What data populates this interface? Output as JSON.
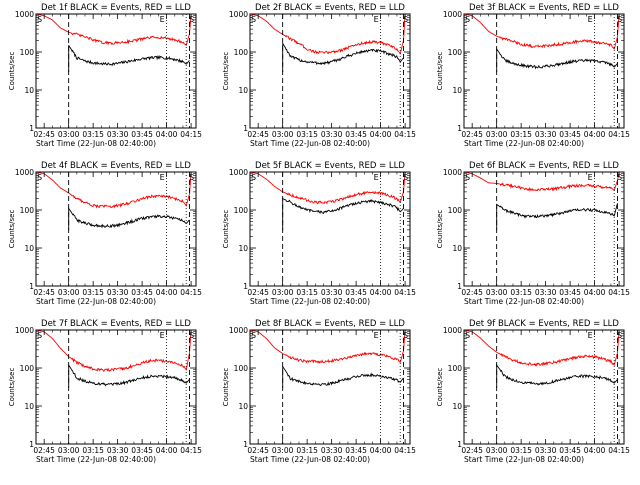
{
  "chart_data": {
    "type": "line",
    "layout": "3x3 grid",
    "y_scale": "log",
    "ylim": [
      1,
      1000
    ],
    "y_tick_labels": [
      "1",
      "10",
      "100",
      "1000"
    ],
    "y_label": "Counts/sec",
    "x_label": "Start Time (22-Jun-08 02:40:00)",
    "x_tick_labels": [
      "02:45",
      "03:00",
      "03:15",
      "03:30",
      "03:45",
      "04:00",
      "04:15"
    ],
    "x_ticks_minutes": [
      165,
      180,
      195,
      210,
      225,
      240,
      255
    ],
    "xlim_minutes": [
      160,
      258
    ],
    "time_x": [
      "02:40",
      "02:45",
      "02:50",
      "02:55",
      "03:00",
      "03:05",
      "03:10",
      "03:15",
      "03:20",
      "03:25",
      "03:30",
      "03:35",
      "03:40",
      "03:45",
      "03:50",
      "03:55",
      "04:00",
      "04:05",
      "04:10",
      "04:12",
      "04:14",
      "04:15",
      "04:16"
    ],
    "time_minutes": [
      160,
      165,
      170,
      175,
      180,
      185,
      190,
      195,
      200,
      205,
      210,
      215,
      220,
      225,
      230,
      235,
      240,
      245,
      250,
      252,
      254,
      255,
      256
    ],
    "legend_colors": {
      "events": "#000000",
      "lld": "#ff0000"
    },
    "panels": [
      {
        "title": "Det 1f BLACK = Events, RED = LLD",
        "left_marker": "S",
        "right_markers": [
          "E",
          "S"
        ],
        "lines": {
          "dashed": [
            180,
            254
          ],
          "dotted": [
            240,
            252
          ]
        },
        "series": [
          {
            "name": "Events",
            "color": "#000000",
            "values": [
              null,
              null,
              null,
              null,
              150,
              70,
              58,
              52,
              49,
              48,
              50,
              55,
              60,
              66,
              70,
              72,
              70,
              64,
              56,
              48,
              60,
              null,
              null
            ]
          },
          {
            "name": "LLD",
            "color": "#ff0000",
            "values": [
              1000,
              900,
              700,
              430,
              330,
              290,
              250,
              210,
              180,
              170,
              175,
              185,
              200,
              220,
              240,
              245,
              230,
              210,
              180,
              150,
              300,
              1000,
              null
            ]
          }
        ]
      },
      {
        "title": "Det 2f BLACK = Events, RED = LLD",
        "left_marker": "S",
        "right_markers": [
          "E",
          "S"
        ],
        "lines": {
          "dashed": [
            180,
            254
          ],
          "dotted": [
            240,
            252
          ]
        },
        "series": [
          {
            "name": "Events",
            "color": "#000000",
            "values": [
              null,
              null,
              null,
              null,
              170,
              75,
              62,
              55,
              52,
              50,
              55,
              65,
              78,
              92,
              105,
              110,
              105,
              90,
              75,
              55,
              70,
              null,
              null
            ]
          },
          {
            "name": "LLD",
            "color": "#ff0000",
            "values": [
              1000,
              900,
              650,
              400,
              290,
              220,
              170,
              120,
              100,
              95,
              100,
              110,
              130,
              155,
              175,
              185,
              175,
              150,
              120,
              90,
              200,
              1000,
              null
            ]
          }
        ]
      },
      {
        "title": "Det 3f BLACK = Events, RED = LLD",
        "left_marker": "S",
        "right_markers": [
          "E",
          "S"
        ],
        "lines": {
          "dashed": [
            180,
            254
          ],
          "dotted": [
            240,
            252
          ]
        },
        "series": [
          {
            "name": "Events",
            "color": "#000000",
            "values": [
              null,
              null,
              null,
              null,
              120,
              60,
              50,
              45,
              42,
              40,
              42,
              45,
              50,
              55,
              58,
              60,
              58,
              55,
              48,
              40,
              50,
              null,
              null
            ]
          },
          {
            "name": "LLD",
            "color": "#ff0000",
            "values": [
              1000,
              900,
              600,
              350,
              260,
              220,
              190,
              160,
              145,
              140,
              145,
              155,
              165,
              180,
              190,
              195,
              185,
              170,
              150,
              120,
              250,
              1000,
              null
            ]
          }
        ]
      },
      {
        "title": "Det 4f BLACK = Events, RED = LLD",
        "left_marker": "S",
        "right_markers": [
          "E",
          "S"
        ],
        "lines": {
          "dashed": [
            180,
            254
          ],
          "dotted": [
            240,
            252
          ]
        },
        "series": [
          {
            "name": "Events",
            "color": "#000000",
            "values": [
              null,
              null,
              null,
              null,
              110,
              55,
              45,
              40,
              38,
              38,
              40,
              45,
              52,
              60,
              66,
              68,
              66,
              60,
              52,
              44,
              55,
              null,
              null
            ]
          },
          {
            "name": "LLD",
            "color": "#ff0000",
            "values": [
              1000,
              900,
              620,
              380,
              280,
              200,
              160,
              130,
              125,
              125,
              130,
              145,
              170,
              200,
              225,
              235,
              225,
              200,
              170,
              130,
              260,
              1000,
              null
            ]
          }
        ]
      },
      {
        "title": "Det 5f BLACK = Events, RED = LLD",
        "left_marker": "S",
        "right_markers": [
          "E",
          "S"
        ],
        "lines": {
          "dashed": [
            180,
            254
          ],
          "dotted": [
            240,
            252
          ]
        },
        "series": [
          {
            "name": "Events",
            "color": "#000000",
            "values": [
              null,
              null,
              null,
              null,
              200,
              160,
              120,
              100,
              90,
              88,
              95,
              110,
              130,
              150,
              165,
              170,
              160,
              140,
              115,
              90,
              110,
              null,
              null
            ]
          },
          {
            "name": "LLD",
            "color": "#ff0000",
            "values": [
              1000,
              900,
              650,
              420,
              300,
              250,
              210,
              180,
              160,
              155,
              165,
              190,
              220,
              255,
              280,
              290,
              275,
              240,
              200,
              160,
              300,
              1000,
              null
            ]
          }
        ]
      },
      {
        "title": "Det 6f BLACK = Events, RED = LLD",
        "left_marker": "S",
        "right_markers": [
          "E",
          "S"
        ],
        "lines": {
          "dashed": [
            180,
            254
          ],
          "dotted": [
            240,
            252
          ]
        },
        "series": [
          {
            "name": "Events",
            "color": "#000000",
            "values": [
              null,
              null,
              null,
              null,
              140,
              100,
              85,
              72,
              68,
              68,
              70,
              76,
              85,
              95,
              100,
              102,
              98,
              90,
              80,
              70,
              150,
              null,
              null
            ]
          },
          {
            "name": "LLD",
            "color": "#ff0000",
            "values": [
              1000,
              900,
              700,
              520,
              500,
              460,
              420,
              380,
              350,
              340,
              345,
              360,
              390,
              420,
              440,
              445,
              430,
              400,
              370,
              330,
              600,
              1000,
              null
            ]
          }
        ]
      },
      {
        "title": "Det 7f BLACK = Events, RED = LLD",
        "left_marker": "S",
        "right_markers": [
          "E",
          "S"
        ],
        "lines": {
          "dashed": [
            180,
            254
          ],
          "dotted": [
            240,
            252
          ]
        },
        "series": [
          {
            "name": "Events",
            "color": "#000000",
            "values": [
              null,
              null,
              null,
              null,
              120,
              55,
              45,
              40,
              38,
              36,
              38,
              42,
              48,
              55,
              60,
              62,
              60,
              55,
              48,
              40,
              50,
              null,
              null
            ]
          },
          {
            "name": "LLD",
            "color": "#ff0000",
            "values": [
              1000,
              900,
              600,
              330,
              200,
              140,
              110,
              95,
              90,
              88,
              92,
              100,
              115,
              135,
              155,
              160,
              150,
              135,
              115,
              90,
              250,
              1000,
              null
            ]
          }
        ]
      },
      {
        "title": "Det 8f BLACK = Events, RED = LLD",
        "left_marker": "S",
        "right_markers": [
          "E",
          "S"
        ],
        "lines": {
          "dashed": [
            180,
            254
          ],
          "dotted": [
            240,
            252
          ]
        },
        "series": [
          {
            "name": "Events",
            "color": "#000000",
            "values": [
              null,
              null,
              null,
              null,
              110,
              52,
              44,
              40,
              38,
              37,
              40,
              45,
              52,
              60,
              64,
              66,
              62,
              56,
              48,
              42,
              55,
              null,
              null
            ]
          },
          {
            "name": "LLD",
            "color": "#ff0000",
            "values": [
              1000,
              900,
              600,
              340,
              240,
              190,
              160,
              150,
              148,
              150,
              155,
              170,
              190,
              215,
              235,
              240,
              225,
              200,
              170,
              140,
              280,
              1000,
              null
            ]
          }
        ]
      },
      {
        "title": "Det 9f BLACK = Events, RED = LLD",
        "left_marker": "S",
        "right_markers": [
          "E",
          "S"
        ],
        "lines": {
          "dashed": [
            180,
            254
          ],
          "dotted": [
            240,
            252
          ]
        },
        "series": [
          {
            "name": "Events",
            "color": "#000000",
            "values": [
              null,
              null,
              null,
              null,
              120,
              60,
              48,
              42,
              40,
              38,
              40,
              44,
              50,
              56,
              60,
              62,
              60,
              55,
              48,
              40,
              50,
              null,
              null
            ]
          },
          {
            "name": "LLD",
            "color": "#ff0000",
            "values": [
              1000,
              900,
              620,
              380,
              260,
              200,
              160,
              140,
              130,
              125,
              130,
              140,
              155,
              175,
              195,
              205,
              195,
              175,
              150,
              120,
              250,
              1000,
              null
            ]
          }
        ]
      }
    ]
  }
}
